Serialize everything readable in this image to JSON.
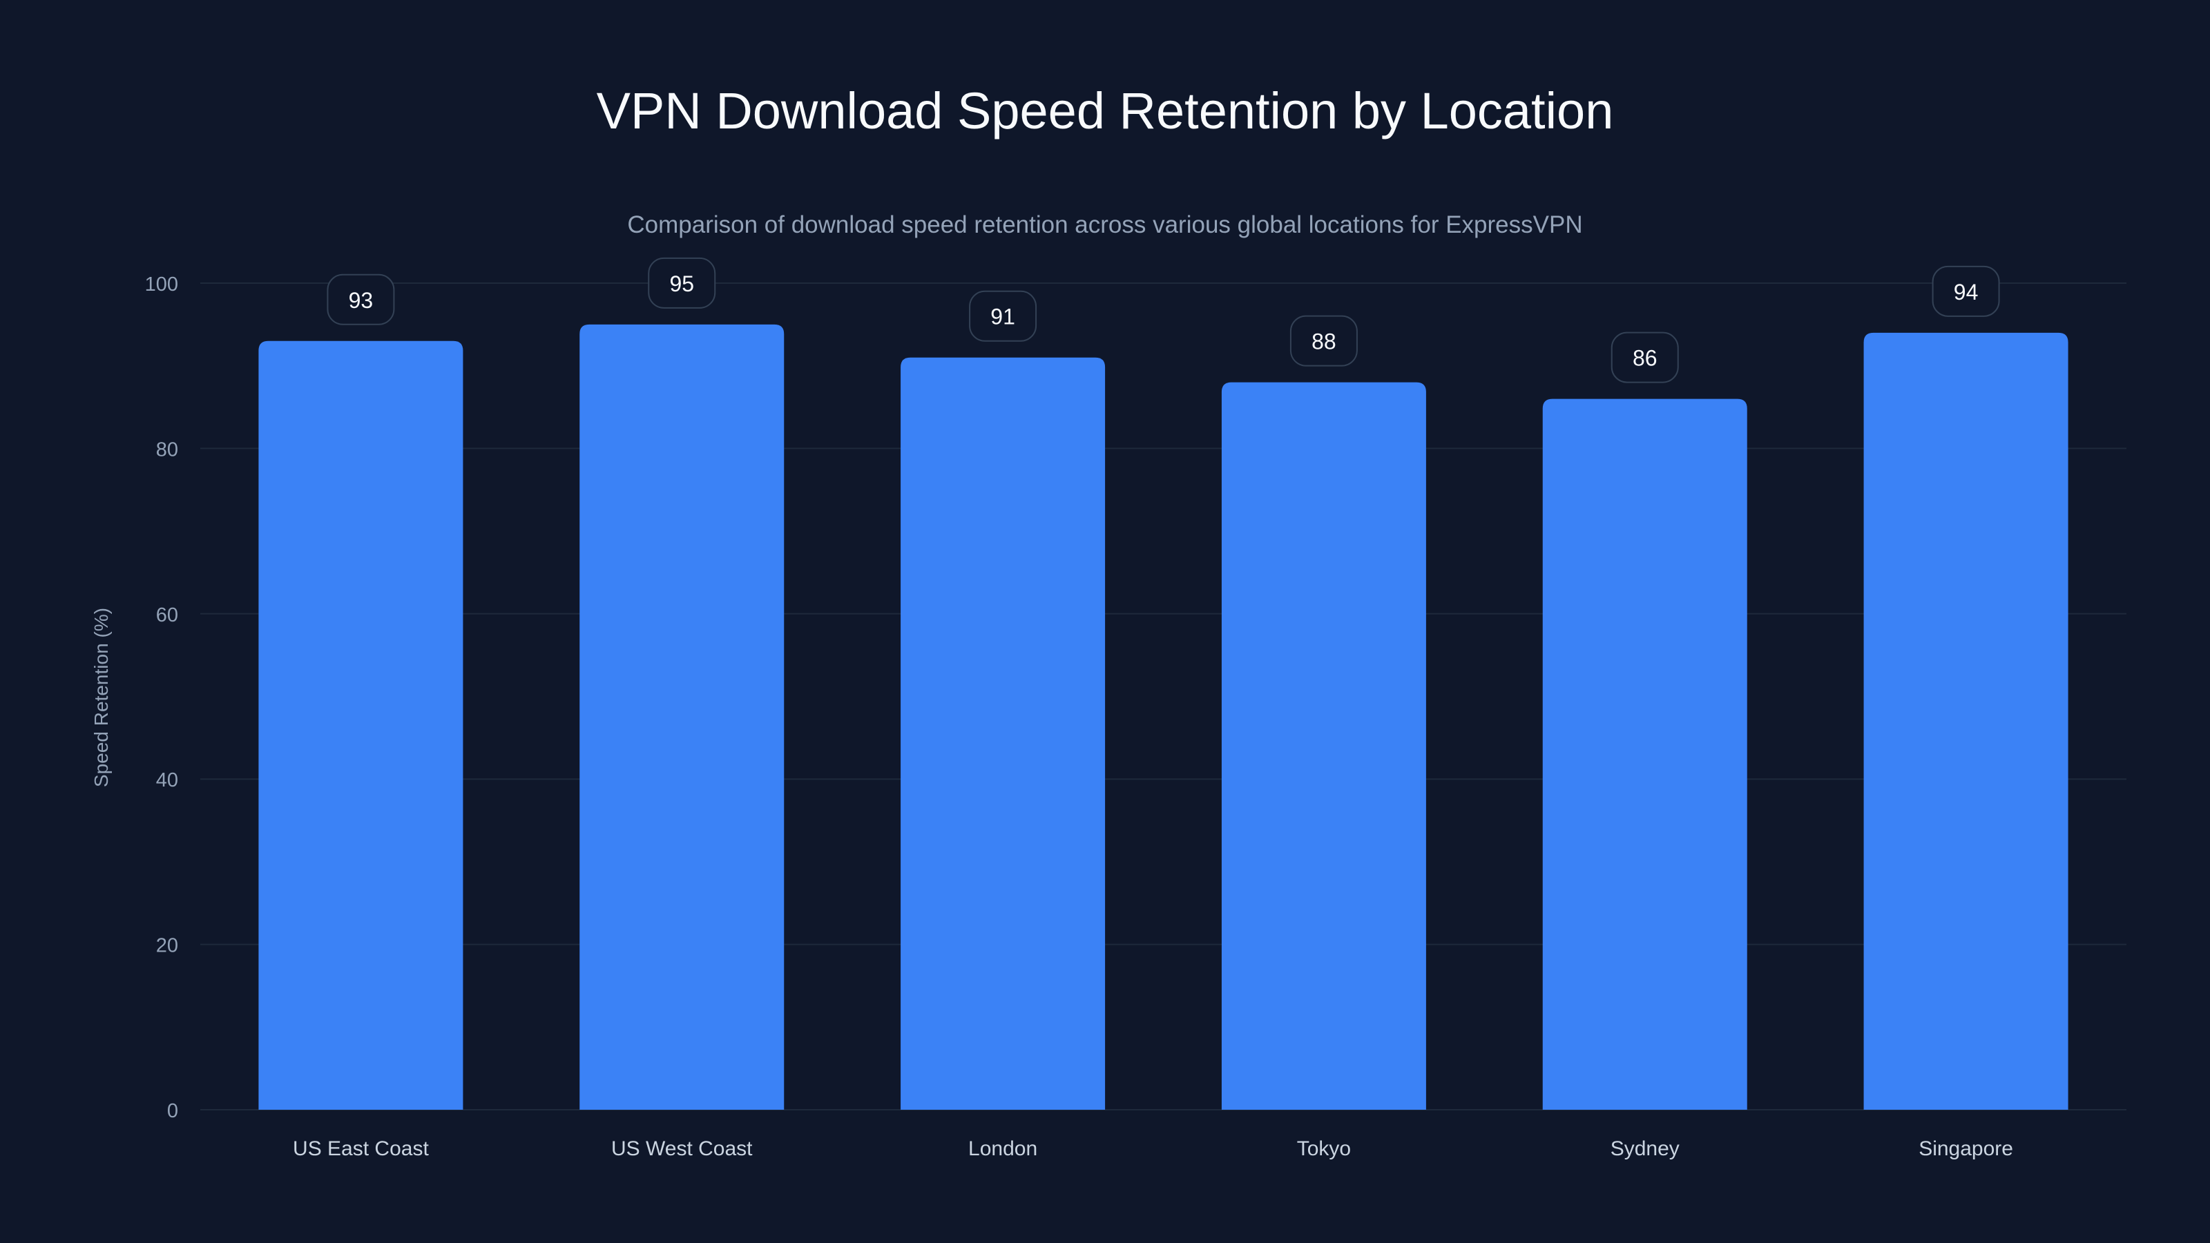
{
  "chart_data": {
    "type": "bar",
    "title": "VPN Download Speed Retention by Location",
    "subtitle": "Comparison of download speed retention across various global locations for ExpressVPN",
    "xlabel": "",
    "ylabel": "Speed Retention (%)",
    "categories": [
      "US East Coast",
      "US West Coast",
      "London",
      "Tokyo",
      "Sydney",
      "Singapore"
    ],
    "values": [
      93,
      95,
      91,
      88,
      86,
      94
    ],
    "ylim": [
      0,
      100
    ],
    "yticks": [
      0,
      20,
      40,
      60,
      80,
      100
    ],
    "grid": true,
    "data_labels": true,
    "colors": {
      "background": "#0f172a",
      "bar": "#3b82f6",
      "grid": "#1e293b",
      "tick": "#94a3b8",
      "label_border": "#334155",
      "label_text": "#f8fafc"
    }
  }
}
